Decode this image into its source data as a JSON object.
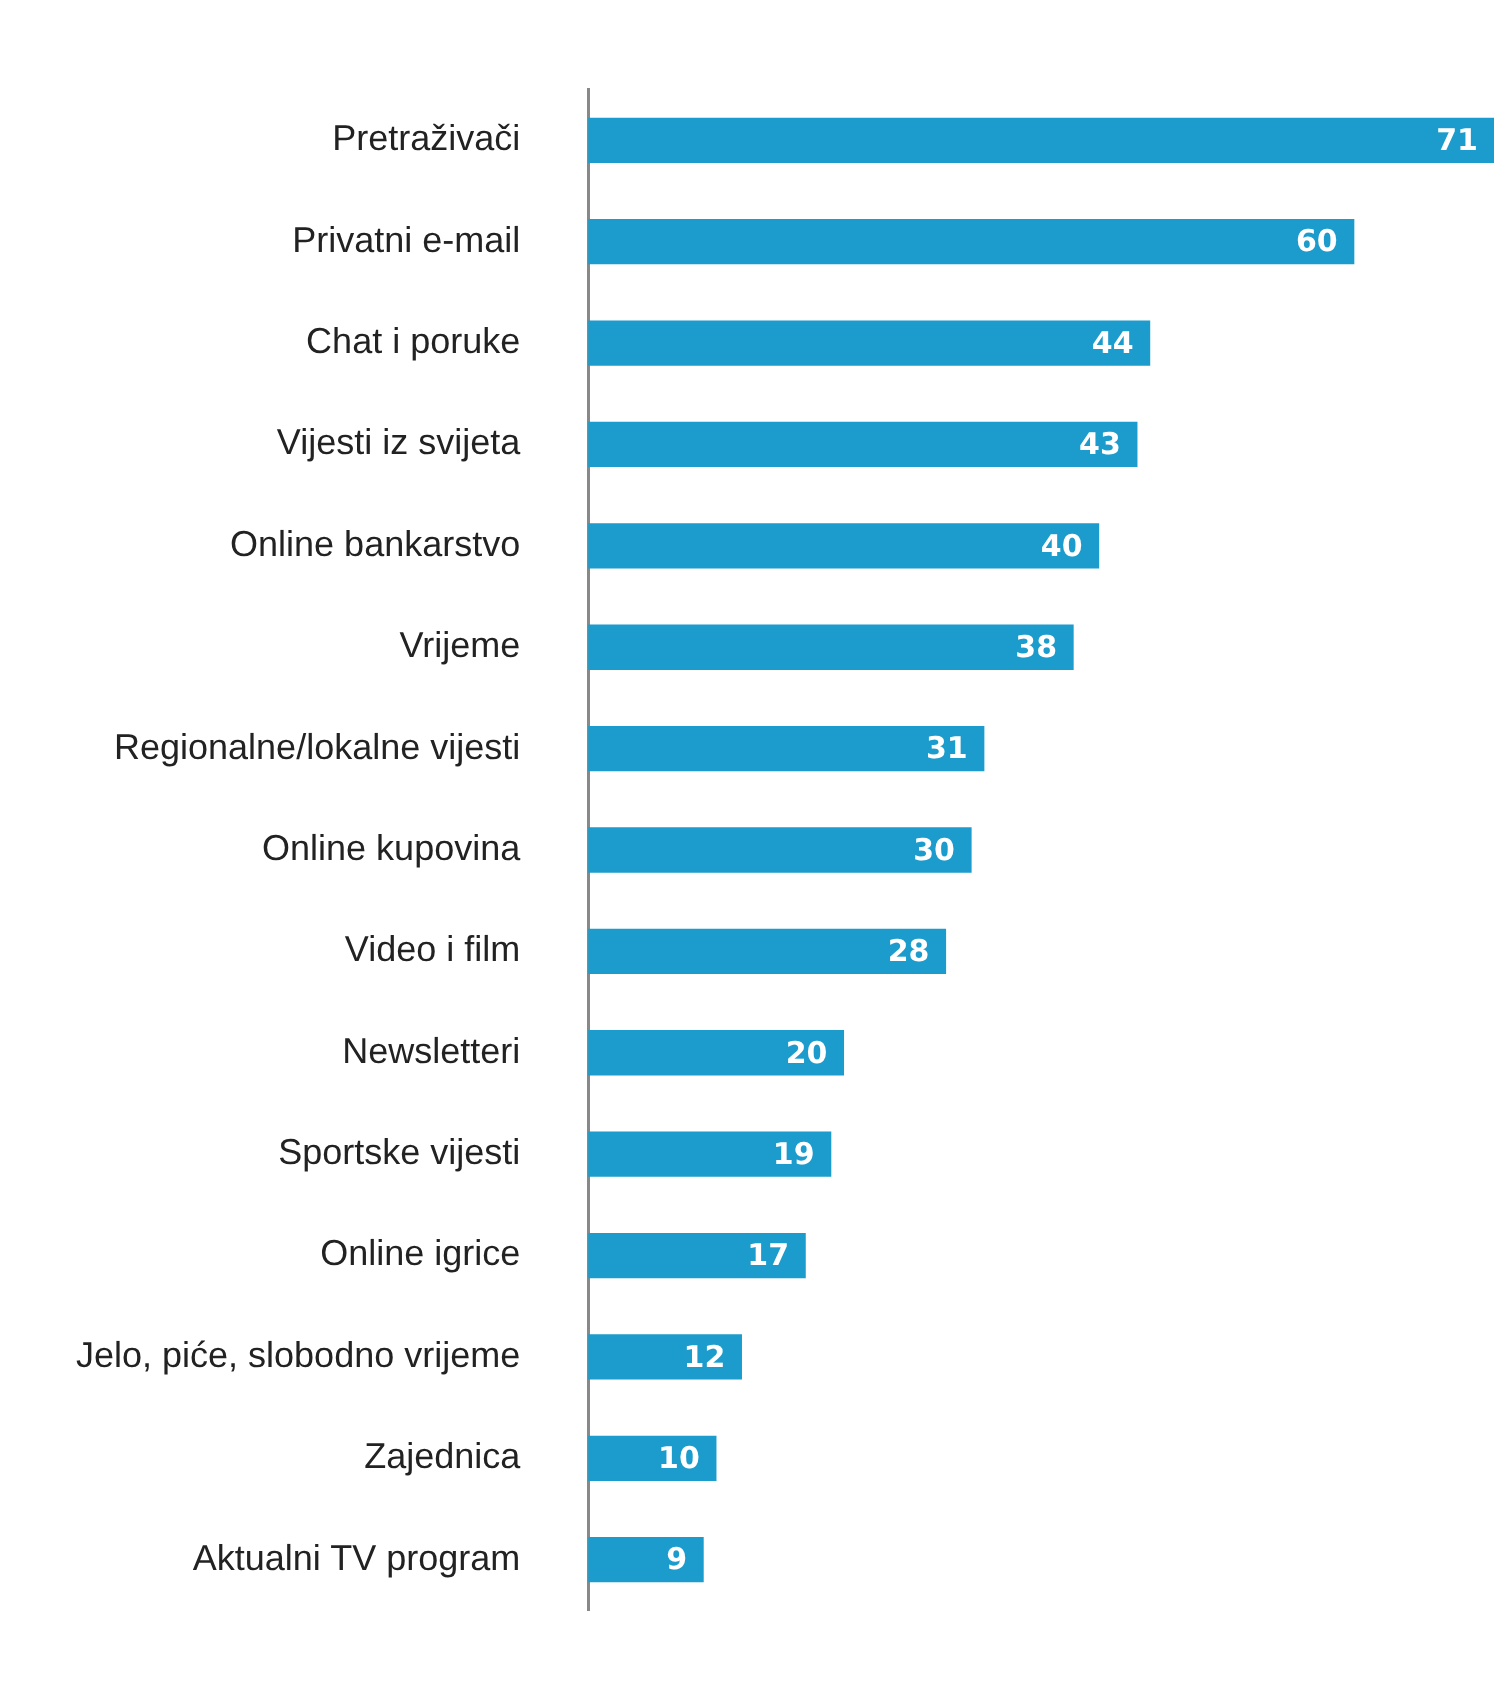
{
  "chart_data": {
    "type": "bar",
    "orientation": "horizontal",
    "categories": [
      "Pretraživači",
      "Privatni e-mail",
      "Chat i poruke",
      "Vijesti iz svijeta",
      "Online bankarstvo",
      "Vrijeme",
      "Regionalne/lokalne vijesti",
      "Online kupovina",
      "Video i film",
      "Newsletteri",
      "Sportske vijesti",
      "Online igrice",
      "Jelo, piće, slobodno vrijeme",
      "Zajednica",
      "Aktualni TV program"
    ],
    "values": [
      71,
      60,
      44,
      43,
      40,
      38,
      31,
      30,
      28,
      20,
      19,
      17,
      12,
      10,
      9
    ],
    "color": "#1b9ccc",
    "data_labels": true
  }
}
